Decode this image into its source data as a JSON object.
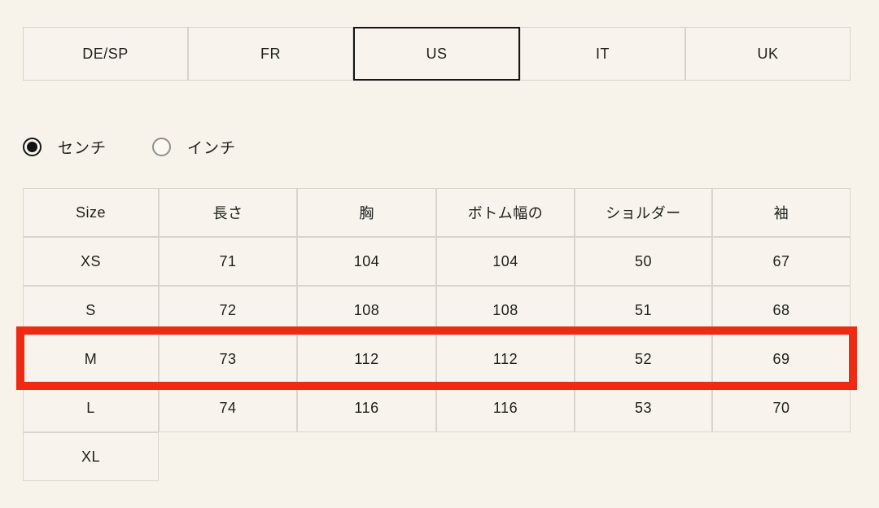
{
  "page": {
    "background_color": "#f7f3ea",
    "text_color": "#1e1e1c"
  },
  "region_tabs": {
    "items": [
      {
        "label": "DE/SP",
        "selected": false
      },
      {
        "label": "FR",
        "selected": false
      },
      {
        "label": "US",
        "selected": true
      },
      {
        "label": "IT",
        "selected": false
      },
      {
        "label": "UK",
        "selected": false
      }
    ],
    "selected_border_color": "#161616",
    "border_color": "#d7d3ca"
  },
  "unit_toggle": {
    "options": [
      {
        "label": "センチ",
        "selected": true
      },
      {
        "label": "インチ",
        "selected": false
      }
    ]
  },
  "size_table": {
    "headers": [
      "Size",
      "長さ",
      "胸",
      "ボトム幅の",
      "ショルダー",
      "袖"
    ],
    "rows": [
      {
        "size": "XS",
        "values": [
          "71",
          "104",
          "104",
          "50",
          "67"
        ],
        "highlighted": false
      },
      {
        "size": "S",
        "values": [
          "72",
          "108",
          "108",
          "51",
          "68"
        ],
        "highlighted": false
      },
      {
        "size": "M",
        "values": [
          "73",
          "112",
          "112",
          "52",
          "69"
        ],
        "highlighted": true
      },
      {
        "size": "L",
        "values": [
          "74",
          "116",
          "116",
          "53",
          "70"
        ],
        "highlighted": false
      },
      {
        "size": "XL",
        "values": [],
        "highlighted": false
      }
    ],
    "border_color": "#d9d5cc"
  },
  "highlight": {
    "highlighted_row": "M",
    "color": "#ee2b12"
  }
}
